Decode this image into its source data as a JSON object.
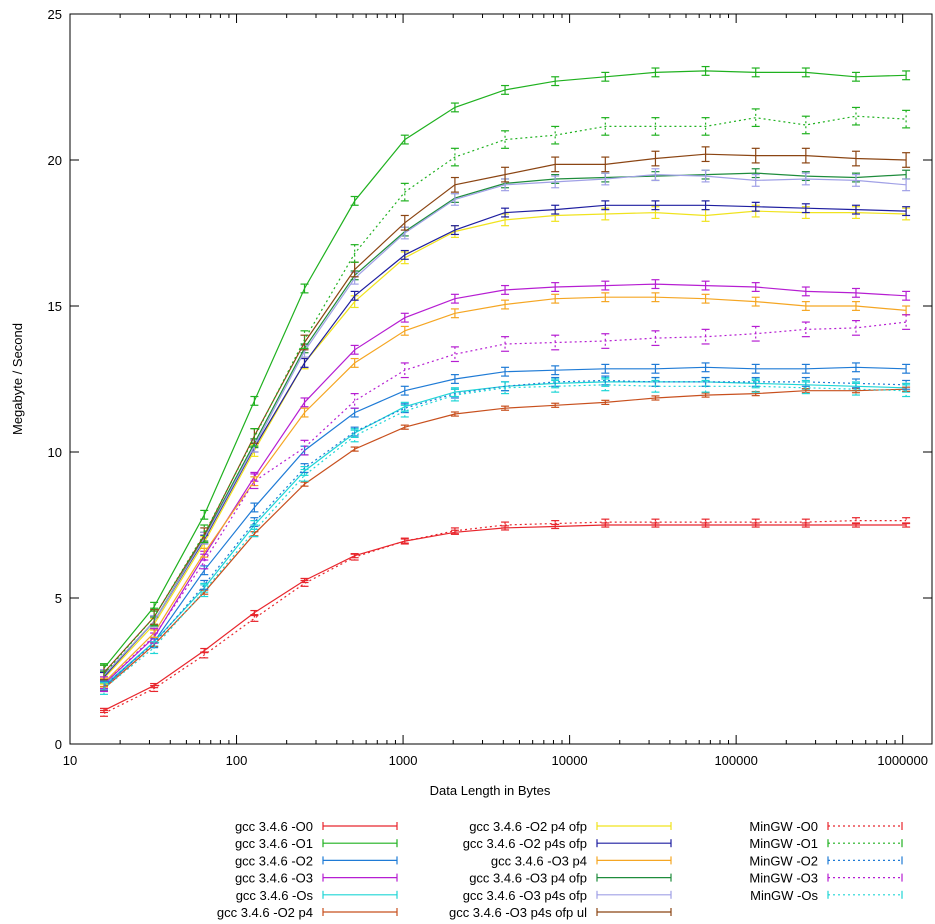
{
  "chart_data": {
    "type": "line",
    "title": "",
    "xlabel": "Data Length in Bytes",
    "ylabel": "Megabyte / Second",
    "x_scale": "log",
    "xlim": [
      10,
      1500000
    ],
    "ylim": [
      0,
      25
    ],
    "x_ticks": [
      10,
      100,
      1000,
      10000,
      100000,
      1000000
    ],
    "x_tick_labels": [
      "10",
      "100",
      "1000",
      "10000",
      "100000",
      "1000000"
    ],
    "y_ticks": [
      0,
      5,
      10,
      15,
      20,
      25
    ],
    "y_tick_labels": [
      "0",
      "5",
      "10",
      "15",
      "20",
      "25"
    ],
    "grid": false,
    "legend_position": "bottom",
    "x": [
      16,
      32,
      64,
      128,
      256,
      512,
      1024,
      2048,
      4096,
      8192,
      16384,
      32768,
      65536,
      131072,
      262144,
      524288,
      1048576
    ],
    "series": [
      {
        "name": "gcc 3.4.6 -O0",
        "color": "#e8262d",
        "dash": "solid",
        "err": 0.07,
        "values": [
          1.15,
          2.0,
          3.2,
          4.5,
          5.6,
          6.45,
          6.95,
          7.25,
          7.4,
          7.45,
          7.5,
          7.5,
          7.5,
          7.5,
          7.5,
          7.5,
          7.5
        ]
      },
      {
        "name": "gcc 3.4.6 -O1",
        "color": "#1fb11f",
        "dash": "solid",
        "err": 0.15,
        "values": [
          2.6,
          4.7,
          7.85,
          11.75,
          15.6,
          18.6,
          20.7,
          21.8,
          22.4,
          22.7,
          22.85,
          23.0,
          23.05,
          23.0,
          23.0,
          22.85,
          22.9
        ]
      },
      {
        "name": "gcc 3.4.6 -O2",
        "color": "#1f7bd6",
        "dash": "solid",
        "err": 0.15,
        "values": [
          1.95,
          3.5,
          5.95,
          8.1,
          10.05,
          11.35,
          12.1,
          12.5,
          12.75,
          12.8,
          12.85,
          12.85,
          12.9,
          12.85,
          12.85,
          12.9,
          12.85
        ]
      },
      {
        "name": "gcc 3.4.6 -O3",
        "color": "#b61ed2",
        "dash": "solid",
        "err": 0.15,
        "values": [
          2.05,
          3.65,
          6.45,
          9.15,
          11.7,
          13.5,
          14.6,
          15.25,
          15.55,
          15.65,
          15.7,
          15.75,
          15.7,
          15.65,
          15.5,
          15.45,
          15.35
        ]
      },
      {
        "name": "gcc 3.4.6 -Os",
        "color": "#1fd6d6",
        "dash": "solid",
        "err": 0.15,
        "values": [
          2.0,
          3.5,
          5.35,
          7.5,
          9.35,
          10.65,
          11.55,
          12.05,
          12.25,
          12.35,
          12.4,
          12.4,
          12.4,
          12.35,
          12.3,
          12.25,
          12.2
        ]
      },
      {
        "name": "gcc 3.4.6 -O2 p4",
        "color": "#c8501e",
        "dash": "solid",
        "err": 0.07,
        "values": [
          1.9,
          3.4,
          5.2,
          7.2,
          8.9,
          10.1,
          10.85,
          11.3,
          11.5,
          11.6,
          11.7,
          11.85,
          11.95,
          12.0,
          12.1,
          12.1,
          12.15
        ]
      },
      {
        "name": "gcc 3.4.6 -O2 p4 ofp",
        "color": "#f0e31e",
        "dash": "solid",
        "err": 0.2,
        "values": [
          2.25,
          4.1,
          6.9,
          10.05,
          13.05,
          15.15,
          16.65,
          17.55,
          17.95,
          18.1,
          18.15,
          18.2,
          18.1,
          18.25,
          18.2,
          18.2,
          18.15
        ]
      },
      {
        "name": "gcc 3.4.6 -O2 p4s ofp",
        "color": "#1e1ea0",
        "dash": "solid",
        "err": 0.15,
        "values": [
          2.3,
          4.2,
          7.0,
          10.15,
          13.05,
          15.35,
          16.75,
          17.6,
          18.2,
          18.3,
          18.45,
          18.45,
          18.45,
          18.4,
          18.35,
          18.3,
          18.25
        ]
      },
      {
        "name": "gcc 3.4.6 -O3 p4",
        "color": "#f5a623",
        "dash": "solid",
        "err": 0.15,
        "values": [
          2.1,
          3.8,
          6.55,
          9.0,
          11.35,
          13.05,
          14.15,
          14.75,
          15.05,
          15.25,
          15.3,
          15.3,
          15.25,
          15.15,
          15.0,
          15.0,
          14.85
        ]
      },
      {
        "name": "gcc 3.4.6 -O3 p4 ofp",
        "color": "#1e8c3c",
        "dash": "solid",
        "err": 0.15,
        "values": [
          2.35,
          4.2,
          7.1,
          10.3,
          13.55,
          16.05,
          17.55,
          18.7,
          19.2,
          19.35,
          19.4,
          19.45,
          19.5,
          19.55,
          19.45,
          19.4,
          19.5
        ]
      },
      {
        "name": "gcc 3.4.6 -O3 p4s ofp",
        "color": "#a0a0e6",
        "dash": "solid",
        "err": 0.2,
        "values": [
          2.35,
          4.2,
          7.05,
          10.2,
          13.45,
          15.95,
          17.5,
          18.65,
          19.15,
          19.25,
          19.35,
          19.5,
          19.45,
          19.3,
          19.35,
          19.3,
          19.15
        ]
      },
      {
        "name": "gcc 3.4.6 -O3 p4s ofp ul",
        "color": "#8b4513",
        "dash": "solid",
        "err": 0.25,
        "values": [
          2.45,
          4.35,
          7.15,
          10.55,
          13.75,
          16.25,
          17.85,
          19.15,
          19.5,
          19.85,
          19.85,
          20.05,
          20.2,
          20.15,
          20.15,
          20.05,
          20.0
        ]
      },
      {
        "name": "MinGW -O0",
        "color": "#e8262d",
        "dash": "dotted",
        "err": 0.1,
        "values": [
          1.05,
          1.9,
          3.05,
          4.3,
          5.5,
          6.4,
          6.95,
          7.3,
          7.5,
          7.55,
          7.6,
          7.6,
          7.6,
          7.6,
          7.6,
          7.65,
          7.65
        ]
      },
      {
        "name": "MinGW -O1",
        "color": "#1fb11f",
        "dash": "dotted",
        "err": 0.3,
        "values": [
          2.4,
          4.35,
          7.2,
          10.5,
          13.85,
          16.8,
          18.9,
          20.1,
          20.7,
          20.85,
          21.15,
          21.15,
          21.15,
          21.45,
          21.2,
          21.5,
          21.4
        ]
      },
      {
        "name": "MinGW -O2",
        "color": "#1f7bd6",
        "dash": "dotted",
        "err": 0.15,
        "values": [
          2.0,
          3.45,
          5.45,
          7.6,
          9.45,
          10.7,
          11.5,
          12.0,
          12.25,
          12.4,
          12.45,
          12.4,
          12.4,
          12.4,
          12.4,
          12.35,
          12.3
        ]
      },
      {
        "name": "MinGW -O3",
        "color": "#b61ed2",
        "dash": "dotted",
        "err": 0.25,
        "values": [
          2.05,
          3.7,
          6.25,
          9.0,
          10.15,
          11.75,
          12.8,
          13.35,
          13.7,
          13.75,
          13.8,
          13.9,
          13.95,
          14.05,
          14.2,
          14.25,
          14.45
        ]
      },
      {
        "name": "MinGW -Os",
        "color": "#1fd6d6",
        "dash": "dotted",
        "err": 0.2,
        "values": [
          1.9,
          3.3,
          5.25,
          7.3,
          9.2,
          10.55,
          11.4,
          11.95,
          12.2,
          12.25,
          12.3,
          12.25,
          12.25,
          12.25,
          12.2,
          12.15,
          12.1
        ]
      }
    ],
    "legend_columns": [
      [
        "gcc 3.4.6 -O0",
        "gcc 3.4.6 -O1",
        "gcc 3.4.6 -O2",
        "gcc 3.4.6 -O3",
        "gcc 3.4.6 -Os",
        "gcc 3.4.6 -O2 p4"
      ],
      [
        "gcc 3.4.6 -O2 p4 ofp",
        "gcc 3.4.6 -O2 p4s ofp",
        "gcc 3.4.6 -O3 p4",
        "gcc 3.4.6 -O3 p4 ofp",
        "gcc 3.4.6 -O3 p4s ofp",
        "gcc 3.4.6 -O3 p4s ofp ul"
      ],
      [
        "MinGW -O0",
        "MinGW -O1",
        "MinGW -O2",
        "MinGW -O3",
        "MinGW -Os"
      ]
    ]
  }
}
